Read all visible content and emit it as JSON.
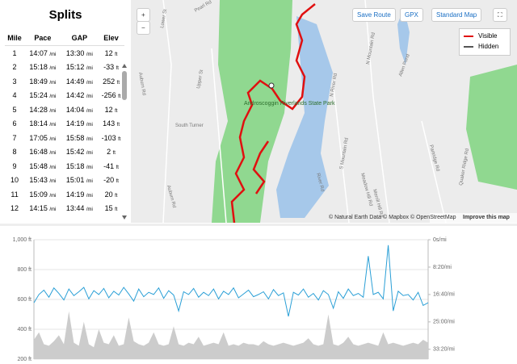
{
  "splits": {
    "title": "Splits",
    "columns": [
      "Mile",
      "Pace",
      "GAP",
      "Elev"
    ],
    "units": {
      "pace": "/mi",
      "elev": "ft"
    },
    "rows": [
      [
        "1",
        "14:07",
        "13:30",
        "12"
      ],
      [
        "2",
        "15:18",
        "15:12",
        "-33"
      ],
      [
        "3",
        "18:49",
        "14:49",
        "252"
      ],
      [
        "4",
        "15:24",
        "14:42",
        "-256"
      ],
      [
        "5",
        "14:28",
        "14:04",
        "12"
      ],
      [
        "6",
        "18:14",
        "14:19",
        "143"
      ],
      [
        "7",
        "17:05",
        "15:58",
        "-103"
      ],
      [
        "8",
        "16:48",
        "15:42",
        "2"
      ],
      [
        "9",
        "15:48",
        "15:18",
        "-41"
      ],
      [
        "10",
        "15:43",
        "15:01",
        "-20"
      ],
      [
        "11",
        "15:09",
        "14:19",
        "20"
      ],
      [
        "12",
        "14:15",
        "13:44",
        "15"
      ]
    ]
  },
  "map": {
    "buttons": {
      "zoom_in": "+",
      "zoom_out": "−",
      "save_route": "Save Route",
      "gpx": "GPX",
      "style": "Standard Map"
    },
    "legend": [
      "Visible",
      "Hidden"
    ],
    "labels": {
      "pearl": "Pearl Rd",
      "lower": "Lower St",
      "upper": "Upper St",
      "auburn": "Auburn Rd",
      "auburn2": "Auburn Rd",
      "turner": "South Turner",
      "park": "Androscoggin Riverlands State Park",
      "river": "River Rd",
      "nriver": "N River Rd",
      "smountain": "S Mountain Rd",
      "nmountain": "N Mountain Rd",
      "allen": "Allen Pond",
      "meadow": "Meadow Hill Rd",
      "merrill": "Merrill Hill Rd",
      "quaker": "Quaker Ridge Rd",
      "partridge": "Partridge Rd"
    },
    "attribution": "© Natural Earth Data © Mapbox © OpenStreetMap",
    "improve": "Improve this map"
  },
  "chart_data": {
    "type": "line",
    "series": [
      {
        "name": "Elevation",
        "color": "#cccccc",
        "values": [
          330,
          380,
          300,
          290,
          320,
          360,
          300,
          520,
          310,
          290,
          450,
          300,
          280,
          400,
          310,
          300,
          360,
          290,
          300,
          480,
          320,
          300,
          290,
          310,
          380,
          300,
          290,
          300,
          420,
          300,
          290,
          310,
          300,
          350,
          290,
          300,
          310,
          300,
          380,
          290,
          300,
          290,
          310,
          300,
          300,
          290,
          320,
          300,
          290,
          300,
          310,
          300,
          290,
          300,
          310,
          340,
          300,
          290,
          300,
          500,
          300,
          290,
          310,
          350,
          300,
          290,
          300,
          310,
          300,
          290,
          380,
          300,
          310,
          300,
          290,
          300,
          310,
          300,
          330,
          310
        ]
      },
      {
        "name": "Pace",
        "color": "#2a9fd6",
        "axis": "y2",
        "values": [
          1150,
          1000,
          920,
          1050,
          880,
          980,
          1100,
          900,
          1020,
          950,
          870,
          1080,
          930,
          1000,
          890,
          1060,
          940,
          1010,
          870,
          990,
          1120,
          900,
          1040,
          960,
          1000,
          880,
          1070,
          930,
          1010,
          1300,
          950,
          1000,
          890,
          1050,
          960,
          1020,
          900,
          1080,
          940,
          1000,
          880,
          1060,
          990,
          920,
          1040,
          1000,
          950,
          1080,
          910,
          1020,
          970,
          1400,
          960,
          1010,
          900,
          1050,
          980,
          1100,
          930,
          1000,
          1250,
          950,
          1070,
          900,
          1020,
          980,
          1050,
          300,
          1000,
          960,
          1080,
          100,
          1300,
          940,
          1020,
          1000,
          1100,
          960,
          1200,
          1150
        ]
      }
    ],
    "ylim": [
      200,
      1000
    ],
    "yticks": [
      {
        "value": 200,
        "label": "200 ft"
      },
      {
        "value": 400,
        "label": "400 ft"
      },
      {
        "value": 600,
        "label": "600 ft"
      },
      {
        "value": 800,
        "label": "800 ft"
      },
      {
        "value": 1000,
        "label": "1,000 ft"
      }
    ],
    "y2lim": [
      2180,
      0
    ],
    "y2ticks": [
      {
        "value": 0,
        "label": "0s/mi"
      },
      {
        "value": 500,
        "label": "8:20/mi"
      },
      {
        "value": 1000,
        "label": "16:40/mi"
      },
      {
        "value": 1500,
        "label": "25:00/mi"
      },
      {
        "value": 2000,
        "label": "33:20/mi"
      }
    ],
    "grid": true
  }
}
